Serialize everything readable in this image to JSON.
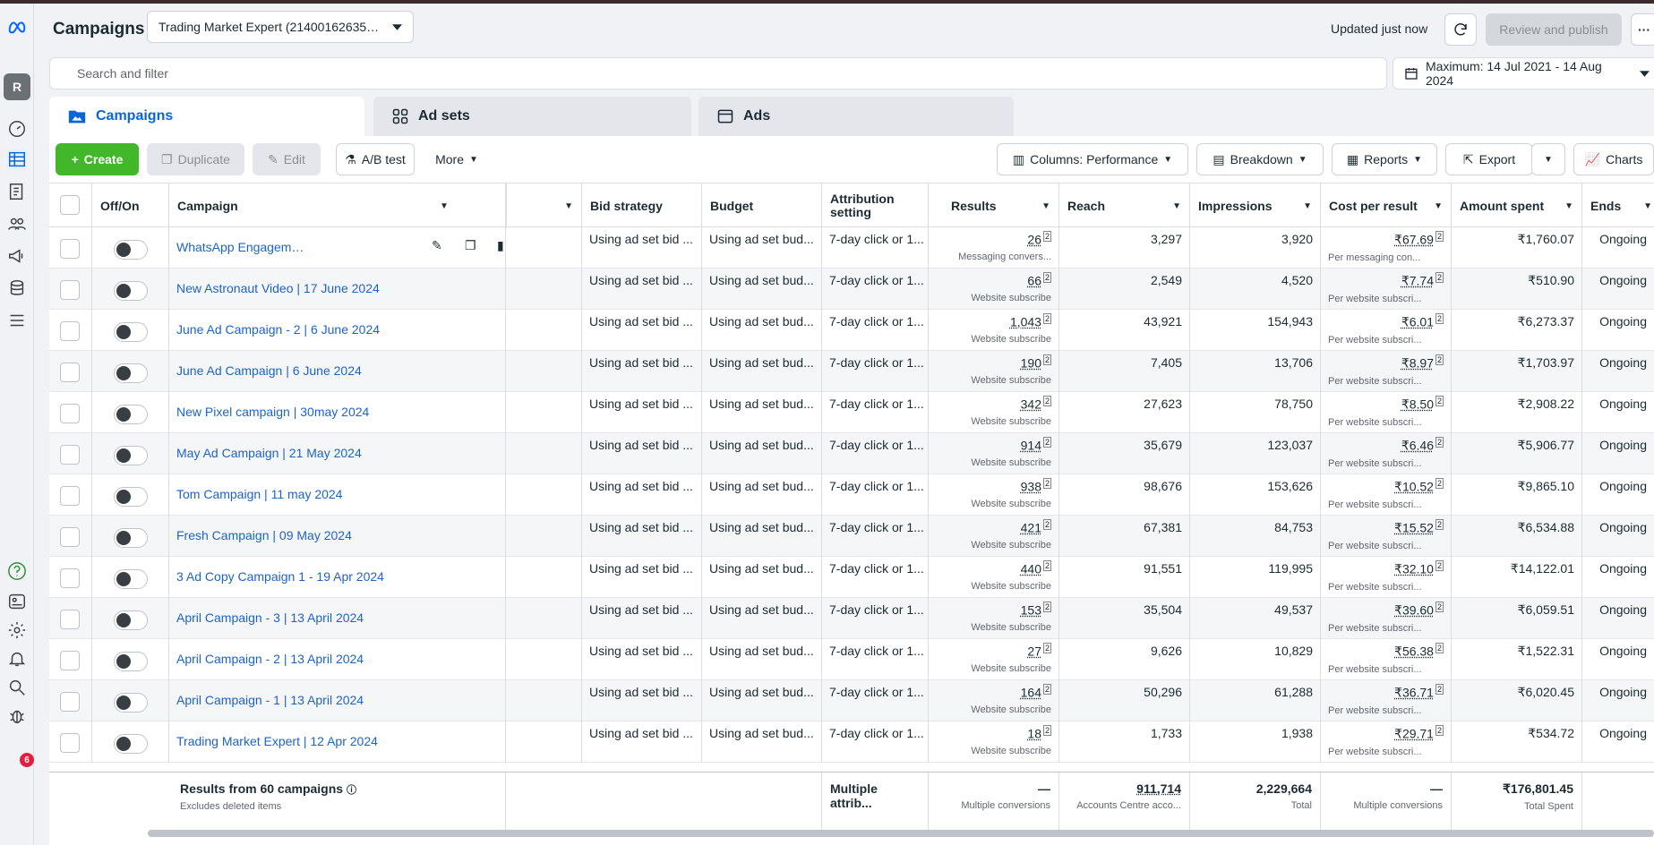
{
  "header": {
    "title": "Campaigns",
    "account": "Trading Market Expert (21400162635…",
    "updated": "Updated just now",
    "review_label": "Review and publish",
    "more_label": "···"
  },
  "search": {
    "placeholder": "Search and filter"
  },
  "date_range": "Maximum: 14 Jul 2021 - 14 Aug 2024",
  "tabs": [
    {
      "label": "Campaigns"
    },
    {
      "label": "Ad sets"
    },
    {
      "label": "Ads"
    }
  ],
  "toolbar": {
    "create": "Create",
    "duplicate": "Duplicate",
    "edit": "Edit",
    "ab_test": "A/B test",
    "more": "More",
    "columns": "Columns: Performance",
    "breakdown": "Breakdown",
    "reports": "Reports",
    "export": "Export",
    "charts": "Charts"
  },
  "rail": {
    "avatar": "R",
    "notifications": "6"
  },
  "columns": [
    "Off/On",
    "Campaign",
    "Bid strategy",
    "Budget",
    "Attribution setting",
    "Results",
    "Reach",
    "Impressions",
    "Cost per result",
    "Amount spent",
    "Ends"
  ],
  "rows": [
    {
      "campaign": "WhatsApp Engagem…",
      "bid": "Using ad set bid ...",
      "budget": "Using ad set bud...",
      "attr": "7-day click or 1...",
      "results": "26",
      "results_sub": "Messaging convers...",
      "reach": "3,297",
      "impressions": "3,920",
      "cpr": "₹67.69",
      "cpr_sub": "Per messaging con...",
      "spent": "₹1,760.07",
      "ends": "Ongoing"
    },
    {
      "campaign": "New Astronaut Video | 17 June 2024",
      "bid": "Using ad set bid ...",
      "budget": "Using ad set bud...",
      "attr": "7-day click or 1...",
      "results": "66",
      "results_sub": "Website subscribe",
      "reach": "2,549",
      "impressions": "4,520",
      "cpr": "₹7.74",
      "cpr_sub": "Per website subscri...",
      "spent": "₹510.90",
      "ends": "Ongoing"
    },
    {
      "campaign": "June Ad Campaign - 2 | 6 June 2024",
      "bid": "Using ad set bid ...",
      "budget": "Using ad set bud...",
      "attr": "7-day click or 1...",
      "results": "1,043",
      "results_sub": "Website subscribe",
      "reach": "43,921",
      "impressions": "154,943",
      "cpr": "₹6.01",
      "cpr_sub": "Per website subscri...",
      "spent": "₹6,273.37",
      "ends": "Ongoing"
    },
    {
      "campaign": "June Ad Campaign | 6 June 2024",
      "bid": "Using ad set bid ...",
      "budget": "Using ad set bud...",
      "attr": "7-day click or 1...",
      "results": "190",
      "results_sub": "Website subscribe",
      "reach": "7,405",
      "impressions": "13,706",
      "cpr": "₹8.97",
      "cpr_sub": "Per website subscri...",
      "spent": "₹1,703.97",
      "ends": "Ongoing"
    },
    {
      "campaign": "New Pixel campaign | 30may 2024",
      "bid": "Using ad set bid ...",
      "budget": "Using ad set bud...",
      "attr": "7-day click or 1...",
      "results": "342",
      "results_sub": "Website subscribe",
      "reach": "27,623",
      "impressions": "78,750",
      "cpr": "₹8.50",
      "cpr_sub": "Per website subscri...",
      "spent": "₹2,908.22",
      "ends": "Ongoing"
    },
    {
      "campaign": "May Ad Campaign | 21 May 2024",
      "bid": "Using ad set bid ...",
      "budget": "Using ad set bud...",
      "attr": "7-day click or 1...",
      "results": "914",
      "results_sub": "Website subscribe",
      "reach": "35,679",
      "impressions": "123,037",
      "cpr": "₹6.46",
      "cpr_sub": "Per website subscri...",
      "spent": "₹5,906.77",
      "ends": "Ongoing"
    },
    {
      "campaign": "Tom Campaign | 11 may 2024",
      "bid": "Using ad set bid ...",
      "budget": "Using ad set bud...",
      "attr": "7-day click or 1...",
      "results": "938",
      "results_sub": "Website subscribe",
      "reach": "98,676",
      "impressions": "153,626",
      "cpr": "₹10.52",
      "cpr_sub": "Per website subscri...",
      "spent": "₹9,865.10",
      "ends": "Ongoing"
    },
    {
      "campaign": "Fresh Campaign | 09 May 2024",
      "bid": "Using ad set bid ...",
      "budget": "Using ad set bud...",
      "attr": "7-day click or 1...",
      "results": "421",
      "results_sub": "Website subscribe",
      "reach": "67,381",
      "impressions": "84,753",
      "cpr": "₹15.52",
      "cpr_sub": "Per website subscri...",
      "spent": "₹6,534.88",
      "ends": "Ongoing"
    },
    {
      "campaign": "3 Ad Copy Campaign 1 - 19 Apr 2024",
      "bid": "Using ad set bid ...",
      "budget": "Using ad set bud...",
      "attr": "7-day click or 1...",
      "results": "440",
      "results_sub": "Website subscribe",
      "reach": "91,551",
      "impressions": "119,995",
      "cpr": "₹32.10",
      "cpr_sub": "Per website subscri...",
      "spent": "₹14,122.01",
      "ends": "Ongoing"
    },
    {
      "campaign": "April Campaign - 3 | 13 April 2024",
      "bid": "Using ad set bid ...",
      "budget": "Using ad set bud...",
      "attr": "7-day click or 1...",
      "results": "153",
      "results_sub": "Website subscribe",
      "reach": "35,504",
      "impressions": "49,537",
      "cpr": "₹39.60",
      "cpr_sub": "Per website subscri...",
      "spent": "₹6,059.51",
      "ends": "Ongoing"
    },
    {
      "campaign": "April Campaign - 2 | 13 April 2024",
      "bid": "Using ad set bid ...",
      "budget": "Using ad set bud...",
      "attr": "7-day click or 1...",
      "results": "27",
      "results_sub": "Website subscribe",
      "reach": "9,626",
      "impressions": "10,829",
      "cpr": "₹56.38",
      "cpr_sub": "Per website subscri...",
      "spent": "₹1,522.31",
      "ends": "Ongoing"
    },
    {
      "campaign": "April Campaign - 1 | 13 April 2024",
      "bid": "Using ad set bid ...",
      "budget": "Using ad set bud...",
      "attr": "7-day click or 1...",
      "results": "164",
      "results_sub": "Website subscribe",
      "reach": "50,296",
      "impressions": "61,288",
      "cpr": "₹36.71",
      "cpr_sub": "Per website subscri...",
      "spent": "₹6,020.45",
      "ends": "Ongoing"
    },
    {
      "campaign": "Trading Market Expert | 12 Apr 2024",
      "bid": "Using ad set bid ...",
      "budget": "Using ad set bud...",
      "attr": "7-day click or 1...",
      "results": "18",
      "results_sub": "Website subscribe",
      "reach": "1,733",
      "impressions": "1,938",
      "cpr": "₹29.71",
      "cpr_sub": "Per website subscri...",
      "spent": "₹534.72",
      "ends": "Ongoing"
    }
  ],
  "footer": {
    "title": "Results from 60 campaigns",
    "subtitle": "Excludes deleted items",
    "attr": "Multiple attrib...",
    "results": "—",
    "results_sub": "Multiple conversions",
    "reach": "911,714",
    "reach_sub": "Accounts Centre acco...",
    "impressions": "2,229,664",
    "impressions_sub": "Total",
    "cpr": "—",
    "cpr_sub": "Multiple conversions",
    "spent": "₹176,801.45",
    "spent_sub": "Total Spent"
  },
  "colors": {
    "accent": "#0a66d6",
    "create": "#42b72a",
    "link": "#1d63c7"
  }
}
